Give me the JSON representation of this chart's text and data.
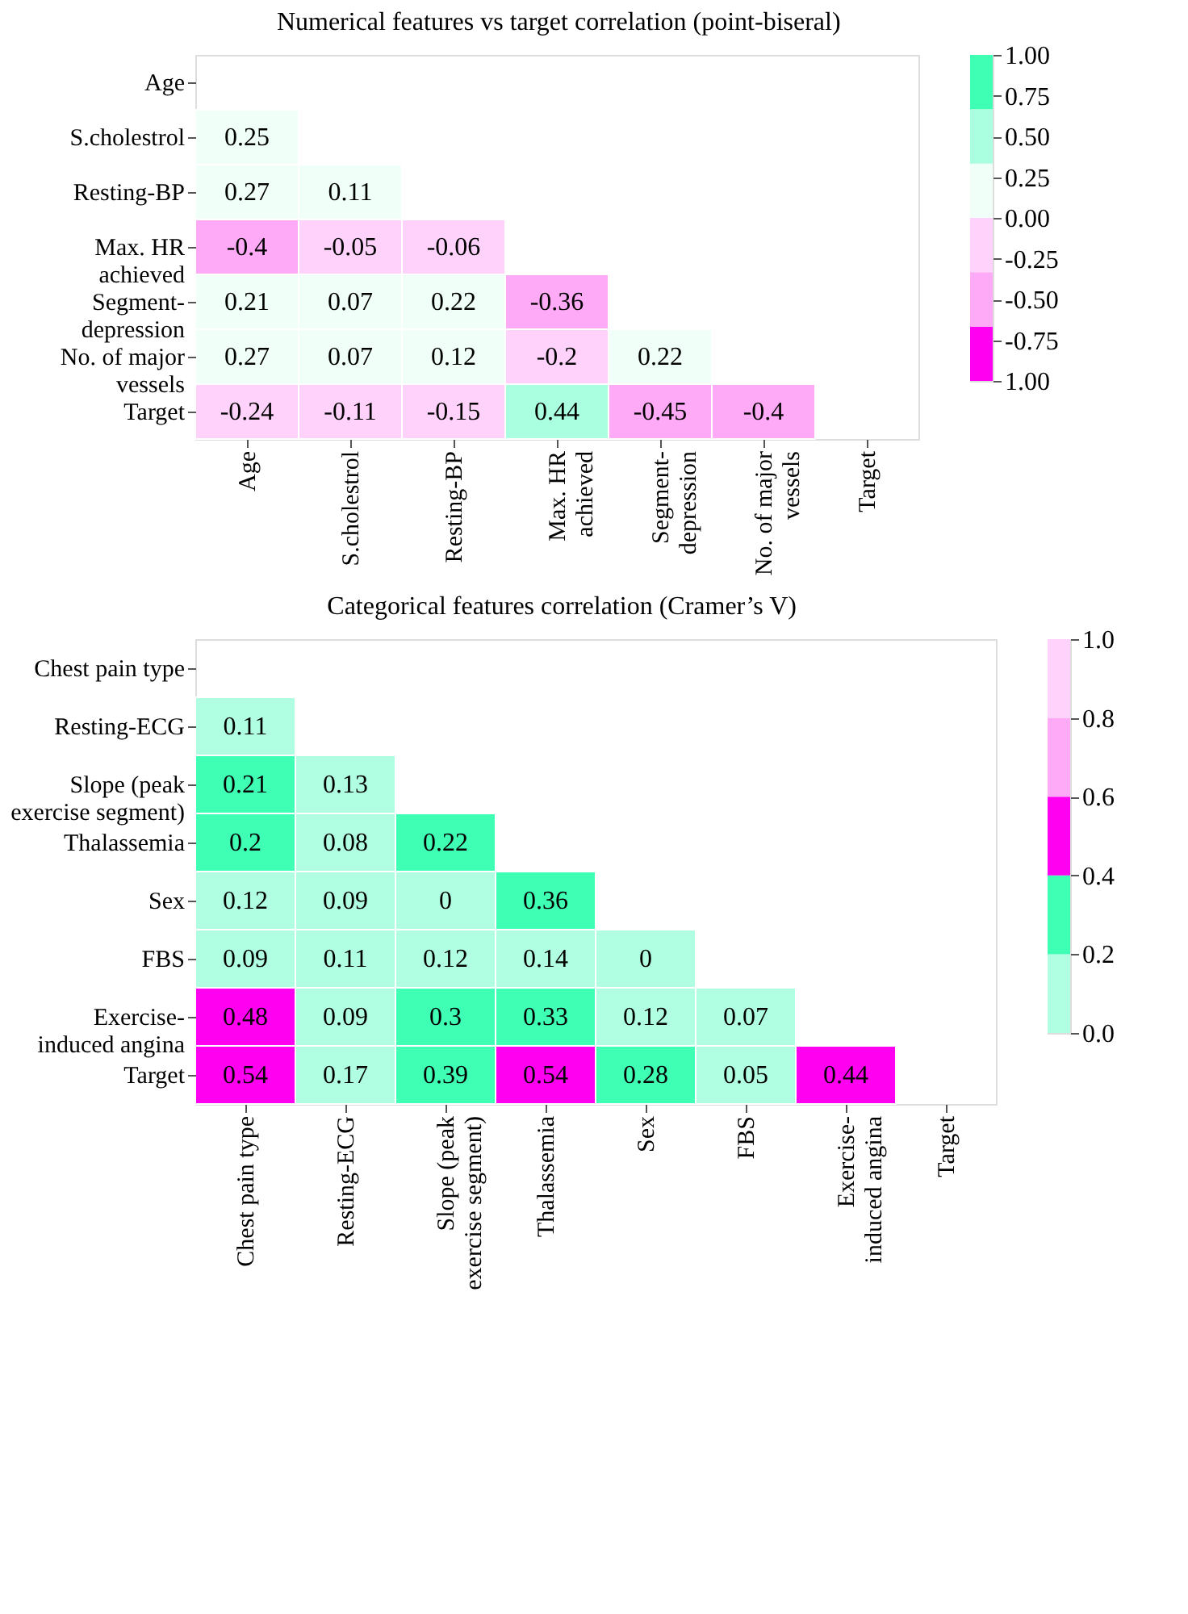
{
  "chart_data": [
    {
      "type": "heatmap",
      "title": "Numerical features vs target correlation (point-biseral)",
      "categories": [
        "Age",
        "S.cholestrol",
        "Resting-BP",
        "Max. HR achieved",
        "Segment-depression",
        "No. of major vessels",
        "Target"
      ],
      "y_categories": [
        "Age",
        "S.cholestrol",
        "Resting-BP",
        "Max. HR achieved",
        "Segment-depression",
        "No. of major vessels",
        "Target"
      ],
      "cells": [
        [
          null,
          null,
          null,
          null,
          null,
          null,
          null
        ],
        [
          0.25,
          null,
          null,
          null,
          null,
          null,
          null
        ],
        [
          0.27,
          0.11,
          null,
          null,
          null,
          null,
          null
        ],
        [
          -0.4,
          -0.05,
          -0.06,
          null,
          null,
          null,
          null
        ],
        [
          0.21,
          0.07,
          0.22,
          -0.36,
          null,
          null,
          null
        ],
        [
          0.27,
          0.07,
          0.12,
          -0.2,
          0.22,
          null,
          null
        ],
        [
          -0.24,
          -0.11,
          -0.15,
          0.44,
          -0.45,
          -0.4,
          null
        ]
      ],
      "data_labels": true,
      "clim": [
        -1,
        1
      ],
      "cticks": [
        {
          "value": 1,
          "label": "1.00"
        },
        {
          "value": 0.75,
          "label": "0.75"
        },
        {
          "value": 0.5,
          "label": "0.50"
        },
        {
          "value": 0.25,
          "label": "0.25"
        },
        {
          "value": 0,
          "label": "0.00"
        },
        {
          "value": -0.25,
          "label": "-0.25"
        },
        {
          "value": -0.5,
          "label": "-0.50"
        },
        {
          "value": -0.75,
          "label": "-0.75"
        },
        {
          "value": -1,
          "label": "1.00"
        }
      ],
      "colors": [
        "#ff00f0",
        "#ffaaf6",
        "#ffd2fb",
        "#f0fff8",
        "#aaffe0",
        "#3fffb5"
      ]
    },
    {
      "type": "heatmap",
      "title": "Categorical features correlation (Cramer’s V)",
      "categories": [
        "Chest pain type",
        "Resting-ECG",
        "Slope (peak exercise segment)",
        "Thalassemia",
        "Sex",
        "FBS",
        "Exercise-induced angina",
        "Target"
      ],
      "y_categories": [
        "Chest pain type",
        "Resting-ECG",
        "Slope (peak exercise segment)",
        "Thalassemia",
        "Sex",
        "FBS",
        "Exercise-induced angina",
        "Target"
      ],
      "cells": [
        [
          null,
          null,
          null,
          null,
          null,
          null,
          null,
          null
        ],
        [
          0.11,
          null,
          null,
          null,
          null,
          null,
          null,
          null
        ],
        [
          0.21,
          0.13,
          null,
          null,
          null,
          null,
          null,
          null
        ],
        [
          0.2,
          0.08,
          0.22,
          null,
          null,
          null,
          null,
          null
        ],
        [
          0.12,
          0.09,
          0,
          0.36,
          null,
          null,
          null,
          null
        ],
        [
          0.09,
          0.11,
          0.12,
          0.14,
          0,
          null,
          null,
          null
        ],
        [
          0.48,
          0.09,
          0.3,
          0.33,
          0.12,
          0.07,
          null,
          null
        ],
        [
          0.54,
          0.17,
          0.39,
          0.54,
          0.28,
          0.05,
          0.44,
          null
        ]
      ],
      "data_labels": true,
      "clim": [
        0,
        1
      ],
      "cticks": [
        {
          "value": 1,
          "label": "1.0"
        },
        {
          "value": 0.8,
          "label": "0.8"
        },
        {
          "value": 0.6,
          "label": "0.6"
        },
        {
          "value": 0.4,
          "label": "0.4"
        },
        {
          "value": 0.2,
          "label": "0.2"
        },
        {
          "value": 0,
          "label": "0.0"
        }
      ],
      "colors": [
        "#b0ffe2",
        "#3fffb5",
        "#ff00f0",
        "#ffaaf6",
        "#ffd2fb"
      ]
    }
  ]
}
